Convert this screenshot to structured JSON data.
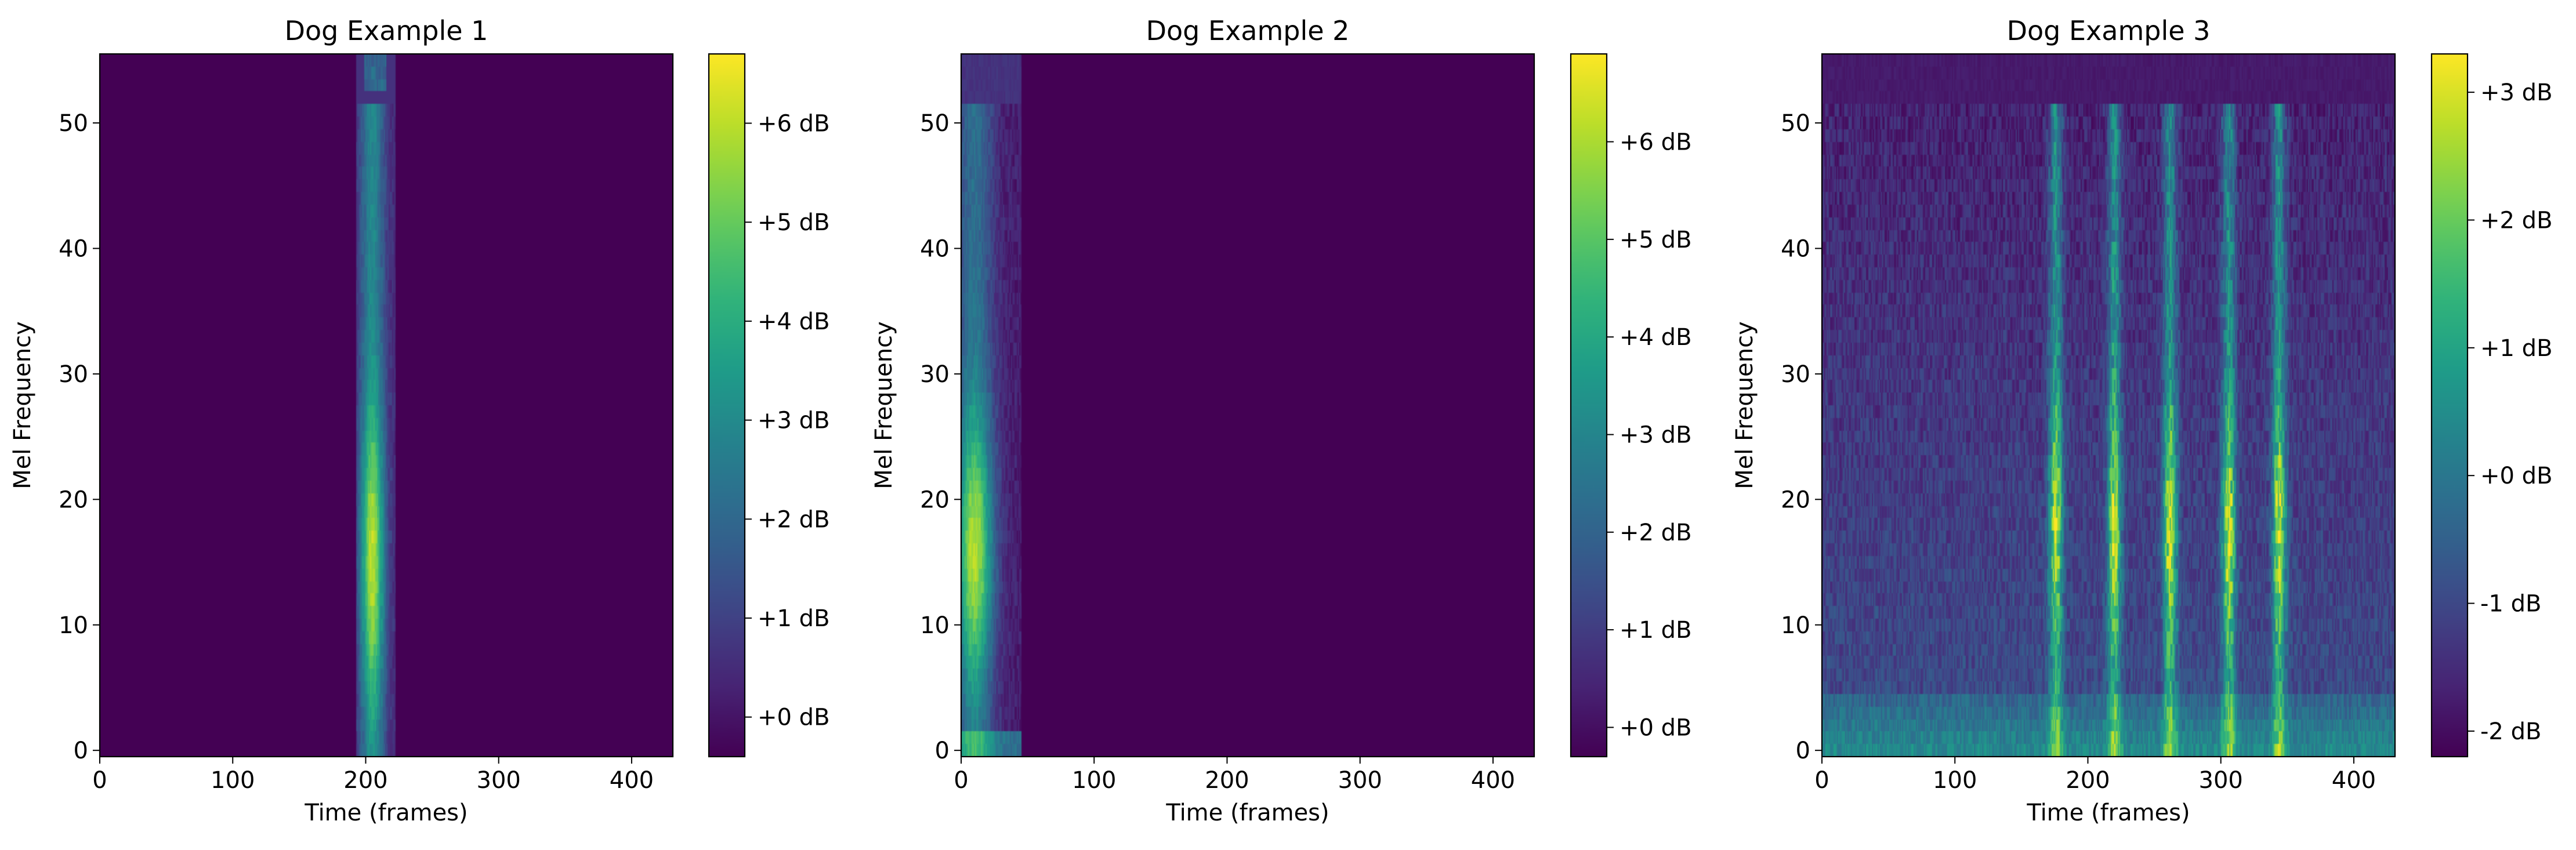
{
  "chart_data": [
    {
      "type": "heatmap",
      "title": "Dog Example 1",
      "xlabel": "Time (frames)",
      "ylabel": "Mel Frequency",
      "xlim": [
        0,
        431
      ],
      "ylim": [
        -0.5,
        55.5
      ],
      "xticks": [
        0,
        100,
        200,
        300,
        400
      ],
      "yticks": [
        0,
        10,
        20,
        30,
        40,
        50
      ],
      "colormap": "viridis",
      "colorbar": {
        "range": [
          -0.4,
          6.7
        ],
        "ticks": [
          0,
          1,
          2,
          3,
          4,
          5,
          6
        ],
        "tick_labels": [
          "+0 dB",
          "+1 dB",
          "+2 dB",
          "+3 dB",
          "+4 dB",
          "+5 dB",
          "+6 dB"
        ]
      },
      "pattern": {
        "kind": "single_burst",
        "active_frames": [
          193,
          222
        ],
        "peak_frame": 205,
        "active_mel_max": 51,
        "peak_mel_bins": [
          11,
          20
        ],
        "background_level": -0.4
      }
    },
    {
      "type": "heatmap",
      "title": "Dog Example 2",
      "xlabel": "Time (frames)",
      "ylabel": "Mel Frequency",
      "xlim": [
        0,
        431
      ],
      "ylim": [
        -0.5,
        55.5
      ],
      "xticks": [
        0,
        100,
        200,
        300,
        400
      ],
      "yticks": [
        0,
        10,
        20,
        30,
        40,
        50
      ],
      "colormap": "viridis",
      "colorbar": {
        "range": [
          -0.3,
          6.9
        ],
        "ticks": [
          0,
          1,
          2,
          3,
          4,
          5,
          6
        ],
        "tick_labels": [
          "+0 dB",
          "+1 dB",
          "+2 dB",
          "+3 dB",
          "+4 dB",
          "+5 dB",
          "+6 dB"
        ]
      },
      "pattern": {
        "kind": "onset_burst",
        "active_frames": [
          0,
          45
        ],
        "peak_frame": 10,
        "active_mel_max": 51,
        "peak_mel_bins": [
          10,
          22
        ],
        "background_level": -0.3
      }
    },
    {
      "type": "heatmap",
      "title": "Dog Example 3",
      "xlabel": "Time (frames)",
      "ylabel": "Mel Frequency",
      "xlim": [
        0,
        431
      ],
      "ylim": [
        -0.5,
        55.5
      ],
      "xticks": [
        0,
        100,
        200,
        300,
        400
      ],
      "yticks": [
        0,
        10,
        20,
        30,
        40,
        50
      ],
      "colormap": "viridis",
      "colorbar": {
        "range": [
          -2.2,
          3.3
        ],
        "ticks": [
          -2,
          -1,
          0,
          1,
          2,
          3
        ],
        "tick_labels": [
          "-2 dB",
          "-1 dB",
          "+0 dB",
          "+1 dB",
          "+2 dB",
          "+3 dB"
        ]
      },
      "pattern": {
        "kind": "repeated_barks",
        "bark_frames": [
          176,
          220,
          262,
          306,
          344
        ],
        "active_mel_max": 51,
        "peak_mel_bins": [
          10,
          27
        ],
        "background_level": -0.8
      }
    }
  ]
}
